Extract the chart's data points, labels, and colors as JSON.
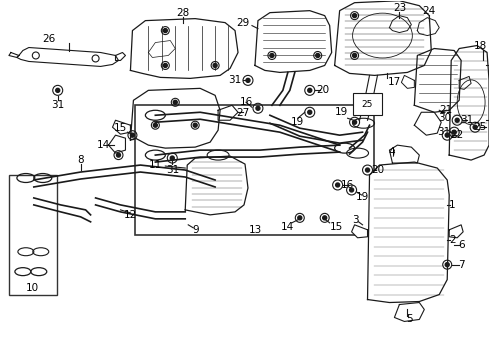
{
  "bg": "#ffffff",
  "lc": "#1a1a1a",
  "tc": "#000000",
  "fs": 7.5,
  "fw": 4.9,
  "fh": 3.6,
  "dpi": 100
}
